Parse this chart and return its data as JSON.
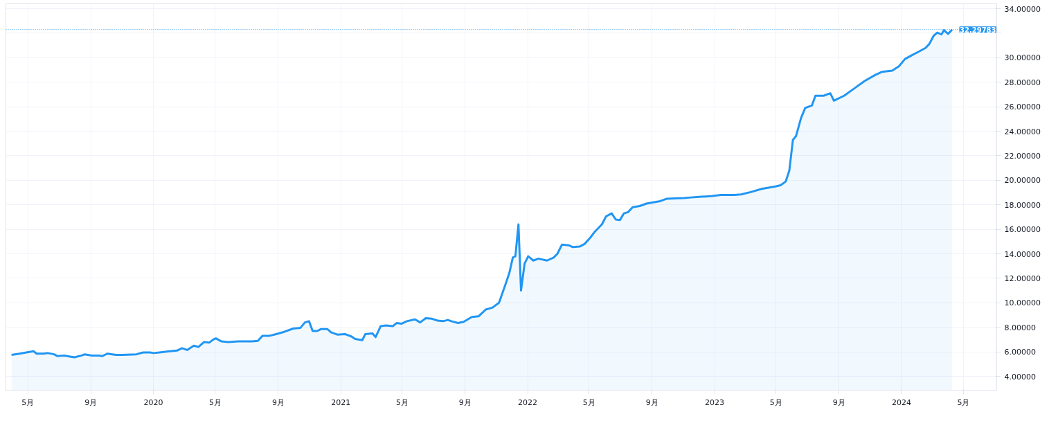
{
  "chart_data": {
    "type": "area",
    "x": [
      "2019-03-30",
      "2019-04-15",
      "2019-04-28",
      "2019-05-12",
      "2019-05-18",
      "2019-06-01",
      "2019-06-08",
      "2019-06-21",
      "2019-06-28",
      "2019-07-11",
      "2019-07-24",
      "2019-07-31",
      "2019-08-14",
      "2019-08-20",
      "2019-09-03",
      "2019-09-16",
      "2019-09-23",
      "2019-10-03",
      "2019-10-20",
      "2019-11-02",
      "2019-11-29",
      "2019-12-12",
      "2019-12-26",
      "2020-01-01",
      "2020-01-13",
      "2020-02-02",
      "2020-02-16",
      "2020-02-26",
      "2020-03-07",
      "2020-03-20",
      "2020-03-29",
      "2020-04-09",
      "2020-04-19",
      "2020-04-27",
      "2020-05-02",
      "2020-05-13",
      "2020-05-26",
      "2020-06-15",
      "2020-07-12",
      "2020-07-23",
      "2020-08-01",
      "2020-08-14",
      "2020-08-28",
      "2020-09-10",
      "2020-09-30",
      "2020-10-14",
      "2020-10-23",
      "2020-10-31",
      "2020-11-07",
      "2020-11-16",
      "2020-11-23",
      "2020-12-06",
      "2020-12-13",
      "2020-12-26",
      "2021-01-09",
      "2021-01-22",
      "2021-01-29",
      "2021-02-12",
      "2021-02-18",
      "2021-03-04",
      "2021-03-10",
      "2021-03-20",
      "2021-03-30",
      "2021-04-13",
      "2021-04-20",
      "2021-04-30",
      "2021-05-10",
      "2021-05-26",
      "2021-06-05",
      "2021-06-16",
      "2021-06-28",
      "2021-07-09",
      "2021-07-20",
      "2021-07-29",
      "2021-08-05",
      "2021-08-18",
      "2021-08-29",
      "2021-09-14",
      "2021-09-27",
      "2021-10-11",
      "2021-10-24",
      "2021-11-06",
      "2021-11-17",
      "2021-11-26",
      "2021-12-03",
      "2021-12-08",
      "2021-12-14",
      "2021-12-19",
      "2021-12-26",
      "2022-01-02",
      "2022-01-12",
      "2022-01-22",
      "2022-02-08",
      "2022-02-21",
      "2022-02-28",
      "2022-03-09",
      "2022-03-22",
      "2022-03-30",
      "2022-04-13",
      "2022-04-22",
      "2022-05-03",
      "2022-05-12",
      "2022-05-26",
      "2022-06-03",
      "2022-06-14",
      "2022-06-22",
      "2022-06-30",
      "2022-07-08",
      "2022-07-16",
      "2022-07-25",
      "2022-08-08",
      "2022-08-21",
      "2022-09-03",
      "2022-09-17",
      "2022-09-30",
      "2022-11-03",
      "2022-11-16",
      "2022-12-02",
      "2022-12-26",
      "2023-01-13",
      "2023-02-09",
      "2023-02-22",
      "2023-03-14",
      "2023-04-03",
      "2023-04-30",
      "2023-05-10",
      "2023-05-20",
      "2023-05-27",
      "2023-06-03",
      "2023-06-09",
      "2023-06-19",
      "2023-06-27",
      "2023-07-10",
      "2023-07-17",
      "2023-08-02",
      "2023-08-15",
      "2023-08-22",
      "2023-09-11",
      "2023-10-01",
      "2023-10-21",
      "2023-11-11",
      "2023-11-24",
      "2023-12-14",
      "2023-12-27",
      "2024-01-08",
      "2024-01-21",
      "2024-02-04",
      "2024-02-17",
      "2024-02-24",
      "2024-03-04",
      "2024-03-11",
      "2024-03-19",
      "2024-03-24",
      "2024-04-01",
      "2024-04-09"
    ],
    "series": [
      {
        "color": "#2196f3",
        "values": [
          5.75,
          5.85,
          5.95,
          6.05,
          5.85,
          5.85,
          5.9,
          5.8,
          5.65,
          5.7,
          5.6,
          5.55,
          5.7,
          5.8,
          5.7,
          5.7,
          5.65,
          5.85,
          5.75,
          5.75,
          5.8,
          5.95,
          5.95,
          5.9,
          5.95,
          6.05,
          6.1,
          6.3,
          6.15,
          6.5,
          6.4,
          6.8,
          6.75,
          7.0,
          7.1,
          6.85,
          6.8,
          6.85,
          6.85,
          6.9,
          7.3,
          7.3,
          7.45,
          7.6,
          7.9,
          7.95,
          8.4,
          8.5,
          7.7,
          7.7,
          7.85,
          7.85,
          7.6,
          7.4,
          7.45,
          7.25,
          7.05,
          6.95,
          7.45,
          7.5,
          7.2,
          8.1,
          8.15,
          8.1,
          8.35,
          8.3,
          8.5,
          8.65,
          8.4,
          8.75,
          8.7,
          8.55,
          8.5,
          8.6,
          8.5,
          8.35,
          8.45,
          8.85,
          8.9,
          9.45,
          9.6,
          10.0,
          11.3,
          12.4,
          13.7,
          13.8,
          16.4,
          11.0,
          13.2,
          13.8,
          13.45,
          13.6,
          13.45,
          13.7,
          14.0,
          14.75,
          14.7,
          14.55,
          14.6,
          14.8,
          15.3,
          15.8,
          16.4,
          17.05,
          17.3,
          16.8,
          16.75,
          17.3,
          17.4,
          17.8,
          17.9,
          18.1,
          18.2,
          18.3,
          18.5,
          18.55,
          18.6,
          18.65,
          18.7,
          18.8,
          18.8,
          18.85,
          19.05,
          19.3,
          19.5,
          19.6,
          19.9,
          20.8,
          23.3,
          23.6,
          25.1,
          25.9,
          26.1,
          26.9,
          26.9,
          27.1,
          26.5,
          26.9,
          27.5,
          28.1,
          28.6,
          28.85,
          28.95,
          29.3,
          29.9,
          30.2,
          30.5,
          30.8,
          31.1,
          31.8,
          32.05,
          31.9,
          32.25,
          31.95,
          32.3
        ]
      }
    ],
    "xlim": [
      "2019-03-19",
      "2024-07-05"
    ],
    "xticks": [
      {
        "value": "2019-05-01",
        "label": "5月"
      },
      {
        "value": "2019-09-01",
        "label": "9月"
      },
      {
        "value": "2020-01-01",
        "label": "2020"
      },
      {
        "value": "2020-05-01",
        "label": "5月"
      },
      {
        "value": "2020-09-01",
        "label": "9月"
      },
      {
        "value": "2021-01-01",
        "label": "2021"
      },
      {
        "value": "2021-05-01",
        "label": "5月"
      },
      {
        "value": "2021-09-01",
        "label": "9月"
      },
      {
        "value": "2022-01-01",
        "label": "2022"
      },
      {
        "value": "2022-05-01",
        "label": "5月"
      },
      {
        "value": "2022-09-01",
        "label": "9月"
      },
      {
        "value": "2023-01-01",
        "label": "2023"
      },
      {
        "value": "2023-05-01",
        "label": "5月"
      },
      {
        "value": "2023-09-01",
        "label": "9月"
      },
      {
        "value": "2024-01-01",
        "label": "2024"
      },
      {
        "value": "2024-05-01",
        "label": "5月"
      }
    ],
    "ylim": [
      2.87,
      34.4
    ],
    "yticks": [
      {
        "value": 4,
        "label": "4.00000"
      },
      {
        "value": 6,
        "label": "6.00000"
      },
      {
        "value": 8,
        "label": "8.00000"
      },
      {
        "value": 10,
        "label": "10.00000"
      },
      {
        "value": 12,
        "label": "12.00000"
      },
      {
        "value": 14,
        "label": "14.00000"
      },
      {
        "value": 16,
        "label": "16.00000"
      },
      {
        "value": 18,
        "label": "18.00000"
      },
      {
        "value": 20,
        "label": "20.00000"
      },
      {
        "value": 22,
        "label": "22.00000"
      },
      {
        "value": 24,
        "label": "24.00000"
      },
      {
        "value": 26,
        "label": "26.00000"
      },
      {
        "value": 28,
        "label": "28.00000"
      },
      {
        "value": 30,
        "label": "30.00000"
      },
      {
        "value": 32,
        "label": null
      },
      {
        "value": 34,
        "label": "34.00000"
      }
    ],
    "ref_lines": [
      {
        "axis": "y",
        "value": 32.29783,
        "label": "32.29783",
        "color": "#2196f3",
        "line_style": "dotted"
      }
    ],
    "grid": true
  }
}
